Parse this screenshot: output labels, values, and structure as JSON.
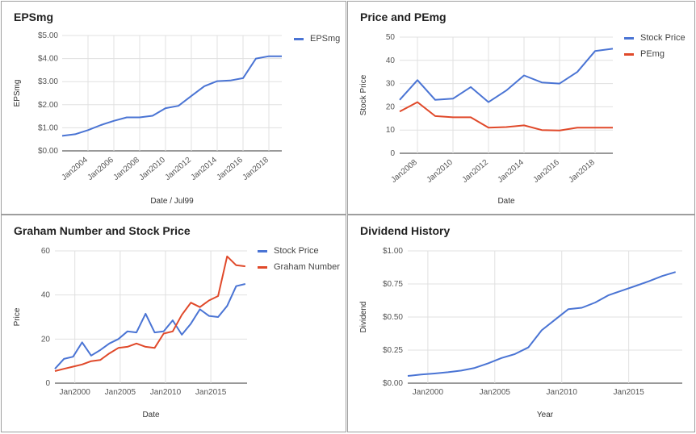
{
  "colors": {
    "blue": "#4a74d4",
    "red": "#e0492a"
  },
  "chart_data": [
    {
      "id": "eps",
      "type": "line",
      "title": "EPSmg",
      "xlabel": "Date / Jul99",
      "ylabel": "EPSmg",
      "x_ticks": [
        "Jan2004",
        "Jan2006",
        "Jan2008",
        "Jan2010",
        "Jan2012",
        "Jan2014",
        "Jan2016",
        "Jan2018"
      ],
      "y_ticks": [
        "$0.00",
        "$1.00",
        "$2.00",
        "$3.00",
        "$4.00",
        "$5.00"
      ],
      "xlim": [
        2002.0,
        2019.0
      ],
      "ylim": [
        0,
        5
      ],
      "legend_position": "top-right",
      "series": [
        {
          "name": "EPSmg",
          "color": "#4a74d4",
          "x": [
            2002,
            2003,
            2004,
            2005,
            2006,
            2007,
            2008,
            2009,
            2010,
            2011,
            2012,
            2013,
            2014,
            2015,
            2016,
            2017,
            2018,
            2019
          ],
          "y": [
            0.65,
            0.72,
            0.9,
            1.12,
            1.3,
            1.45,
            1.45,
            1.52,
            1.85,
            1.95,
            2.38,
            2.8,
            3.02,
            3.05,
            3.15,
            4.0,
            4.1,
            4.1
          ]
        }
      ]
    },
    {
      "id": "pe",
      "type": "line",
      "title": "Price and PEmg",
      "xlabel": "Date",
      "ylabel": "Stock Price",
      "x_ticks": [
        "Jan2008",
        "Jan2010",
        "Jan2012",
        "Jan2014",
        "Jan2016",
        "Jan2018"
      ],
      "y_ticks": [
        "0",
        "10",
        "20",
        "30",
        "40",
        "50"
      ],
      "xlim": [
        2007.0,
        2019.0
      ],
      "ylim": [
        0,
        50
      ],
      "legend_position": "top-right",
      "series": [
        {
          "name": "Stock Price",
          "color": "#4a74d4",
          "x": [
            2007,
            2008,
            2009,
            2010,
            2011,
            2012,
            2013,
            2014,
            2015,
            2016,
            2017,
            2018,
            2019
          ],
          "y": [
            23,
            31.5,
            23,
            23.5,
            28.5,
            22,
            27,
            33.5,
            30.5,
            30,
            35,
            44,
            45
          ]
        },
        {
          "name": "PEmg",
          "color": "#e0492a",
          "x": [
            2007,
            2008,
            2009,
            2010,
            2011,
            2012,
            2013,
            2014,
            2015,
            2016,
            2017,
            2018,
            2019
          ],
          "y": [
            18,
            22,
            16,
            15.5,
            15.5,
            11,
            11.3,
            12,
            10,
            9.8,
            11,
            11,
            11
          ]
        }
      ]
    },
    {
      "id": "graham",
      "type": "line",
      "title": "Graham Number and Stock Price",
      "xlabel": "Date",
      "ylabel": "Price",
      "x_ticks": [
        "Jan2000",
        "Jan2005",
        "Jan2010",
        "Jan2015"
      ],
      "x_tick_values": [
        2000,
        2005,
        2010,
        2015
      ],
      "y_ticks": [
        "0",
        "20",
        "40",
        "60"
      ],
      "xlim": [
        1997.8,
        2019.0
      ],
      "ylim": [
        0,
        60
      ],
      "legend_position": "top-right",
      "series": [
        {
          "name": "Stock Price",
          "color": "#4a74d4",
          "x": [
            1997.8,
            1998.8,
            1999.8,
            2000.8,
            2001.8,
            2002.8,
            2003.8,
            2004.8,
            2005.8,
            2006.8,
            2007.8,
            2008.8,
            2009.8,
            2010.8,
            2011.8,
            2012.8,
            2013.8,
            2014.8,
            2015.8,
            2016.8,
            2017.8,
            2018.8
          ],
          "y": [
            6.5,
            11,
            12,
            18.5,
            12.5,
            15,
            18,
            20,
            23.5,
            23,
            31.5,
            23,
            23.5,
            28.5,
            22,
            27,
            33.5,
            30.5,
            30,
            35,
            44,
            45
          ]
        },
        {
          "name": "Graham Number",
          "color": "#e0492a",
          "x": [
            1997.8,
            1998.8,
            1999.8,
            2000.8,
            2001.8,
            2002.8,
            2003.8,
            2004.8,
            2005.8,
            2006.8,
            2007.8,
            2008.8,
            2009.8,
            2010.8,
            2011.8,
            2012.8,
            2013.8,
            2014.8,
            2015.8,
            2016.8,
            2017.8,
            2018.8
          ],
          "y": [
            5.5,
            6.5,
            7.5,
            8.5,
            10,
            10.5,
            13.5,
            16,
            16.5,
            18,
            16.5,
            16,
            22.5,
            23.5,
            31,
            36.5,
            34.5,
            37.5,
            39.5,
            57.5,
            53.5,
            53
          ]
        }
      ]
    },
    {
      "id": "dividend",
      "type": "line",
      "title": "Dividend History",
      "xlabel": "Year",
      "ylabel": "Dividend",
      "x_ticks": [
        "Jan2000",
        "Jan2005",
        "Jan2010",
        "Jan2015"
      ],
      "x_tick_values": [
        2000,
        2005,
        2010,
        2015
      ],
      "y_ticks": [
        "$0.00",
        "$0.25",
        "$0.50",
        "$0.75",
        "$1.00"
      ],
      "xlim": [
        1998.5,
        2019.0
      ],
      "ylim": [
        0,
        1
      ],
      "series": [
        {
          "name": "Dividend",
          "color": "#4a74d4",
          "x": [
            1998.5,
            1999.5,
            2000.5,
            2001.5,
            2002.5,
            2003.5,
            2004.5,
            2005.5,
            2006.5,
            2007.5,
            2008.5,
            2009.5,
            2010.5,
            2011.5,
            2012.5,
            2013.5,
            2014.5,
            2015.5,
            2016.5,
            2017.5,
            2018.5
          ],
          "y": [
            0.055,
            0.065,
            0.073,
            0.083,
            0.095,
            0.115,
            0.15,
            0.19,
            0.22,
            0.27,
            0.4,
            0.48,
            0.56,
            0.57,
            0.61,
            0.665,
            0.7,
            0.735,
            0.77,
            0.81,
            0.84
          ]
        }
      ]
    }
  ]
}
